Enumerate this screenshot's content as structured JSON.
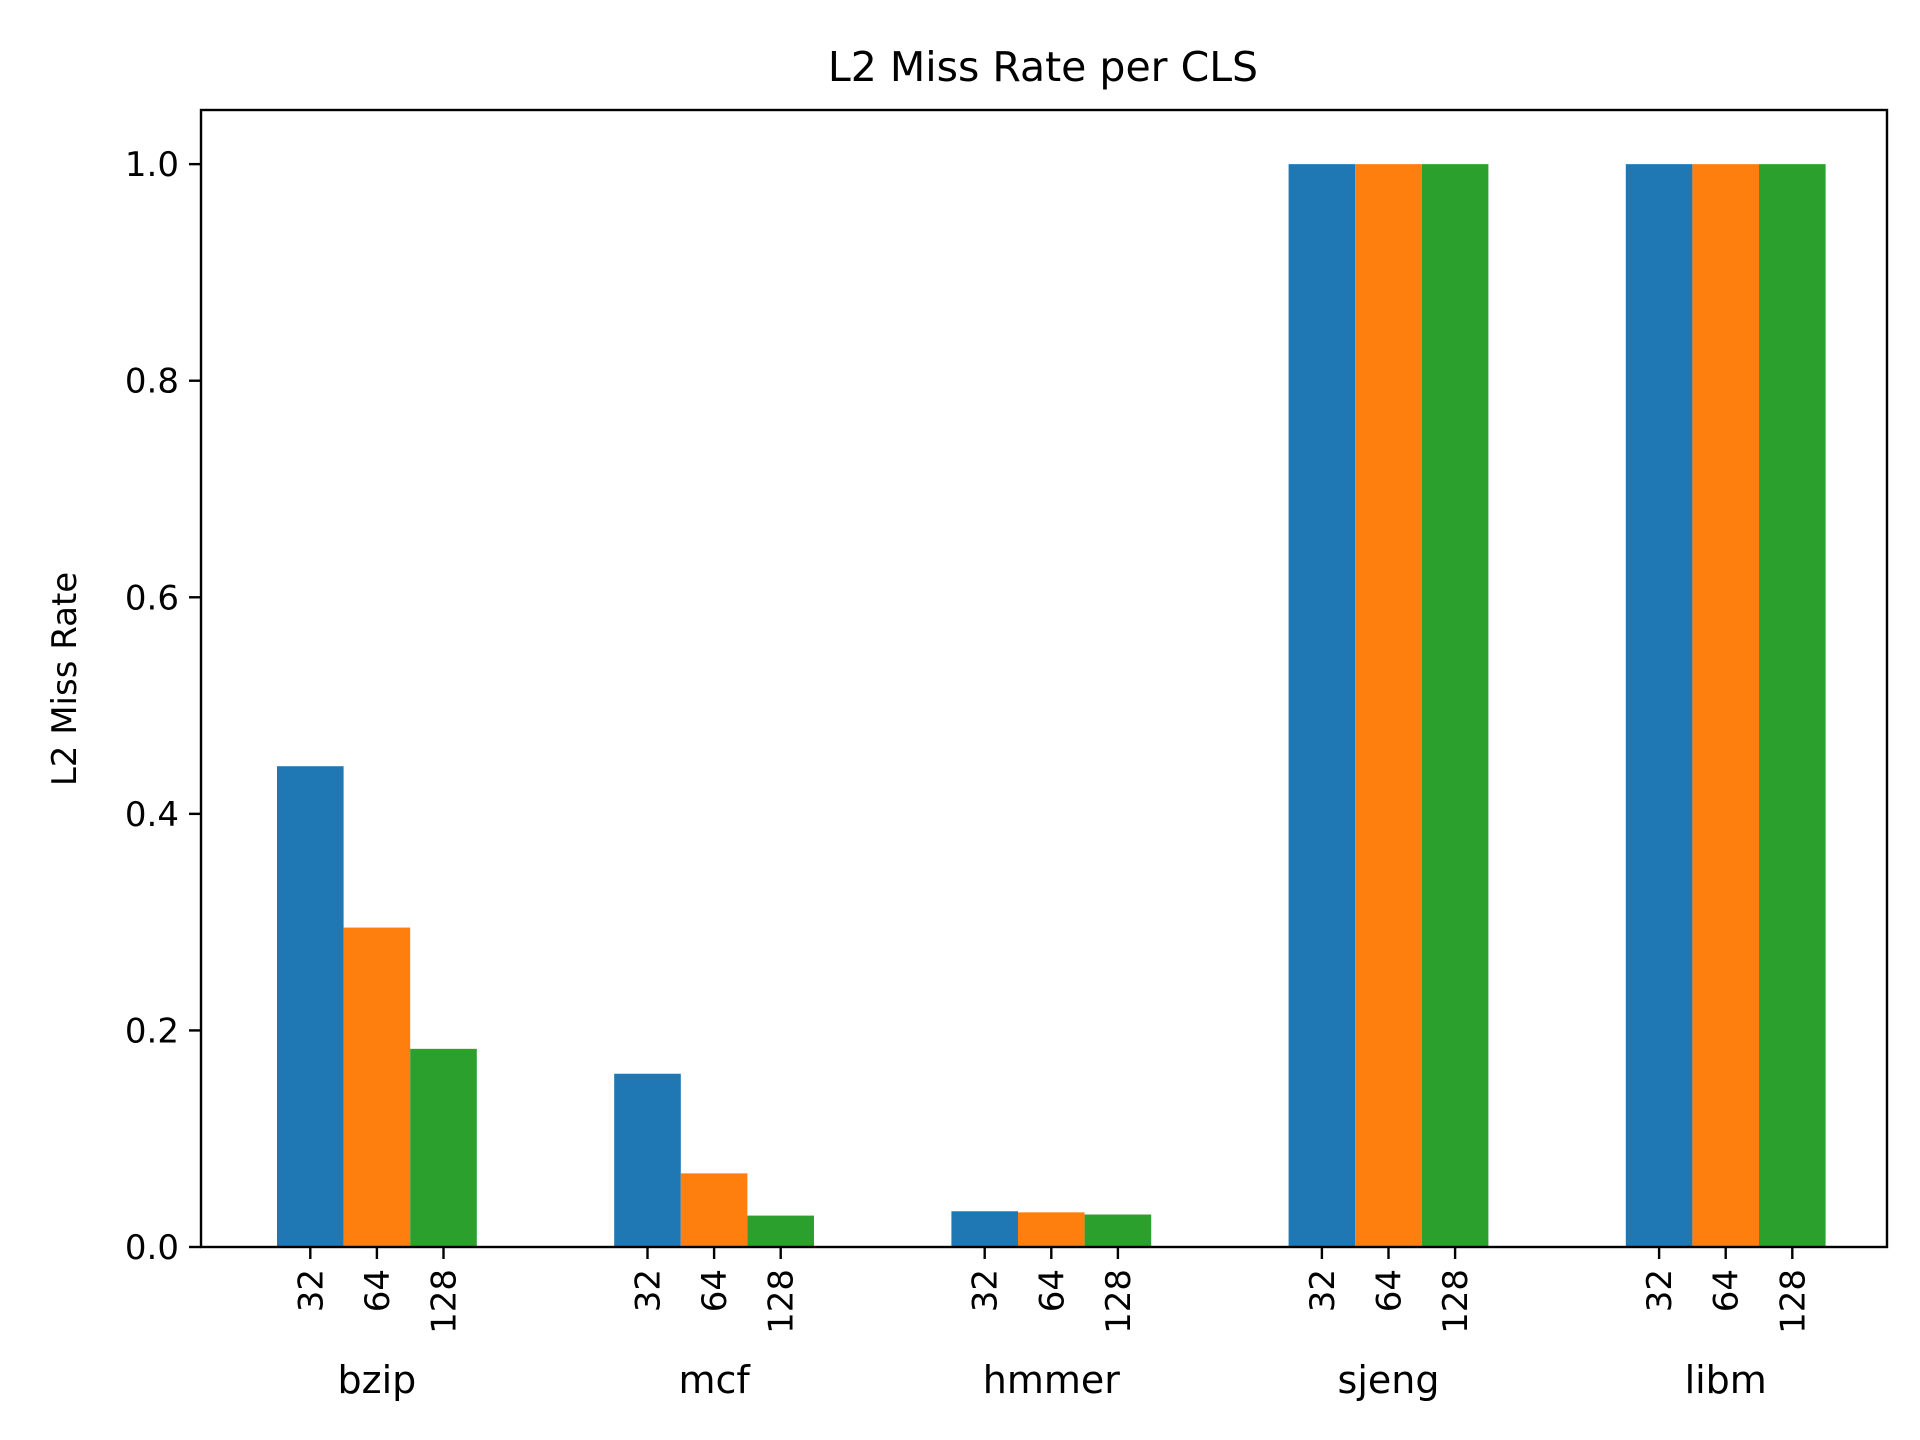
{
  "chart_data": {
    "type": "bar",
    "title": "L2 Miss Rate per CLS",
    "xlabel": "",
    "ylabel": "L2 Miss Rate",
    "categories": [
      "bzip",
      "mcf",
      "hmmer",
      "sjeng",
      "libm"
    ],
    "sub_labels": [
      "32",
      "64",
      "128"
    ],
    "series": [
      {
        "values": [
          0.444,
          0.16,
          0.033,
          1.0,
          1.0
        ],
        "color": "#1f77b4"
      },
      {
        "values": [
          0.295,
          0.068,
          0.032,
          1.0,
          1.0
        ],
        "color": "#ff7f0e"
      },
      {
        "values": [
          0.183,
          0.029,
          0.03,
          1.0,
          1.0
        ],
        "color": "#2ca02c"
      }
    ],
    "ylim": [
      0,
      1.05
    ],
    "yticks": [
      0.0,
      0.2,
      0.4,
      0.6,
      0.8,
      1.0
    ],
    "ytick_labels": [
      "0.0",
      "0.2",
      "0.4",
      "0.6",
      "0.8",
      "1.0"
    ],
    "grid": false,
    "legend": false
  }
}
